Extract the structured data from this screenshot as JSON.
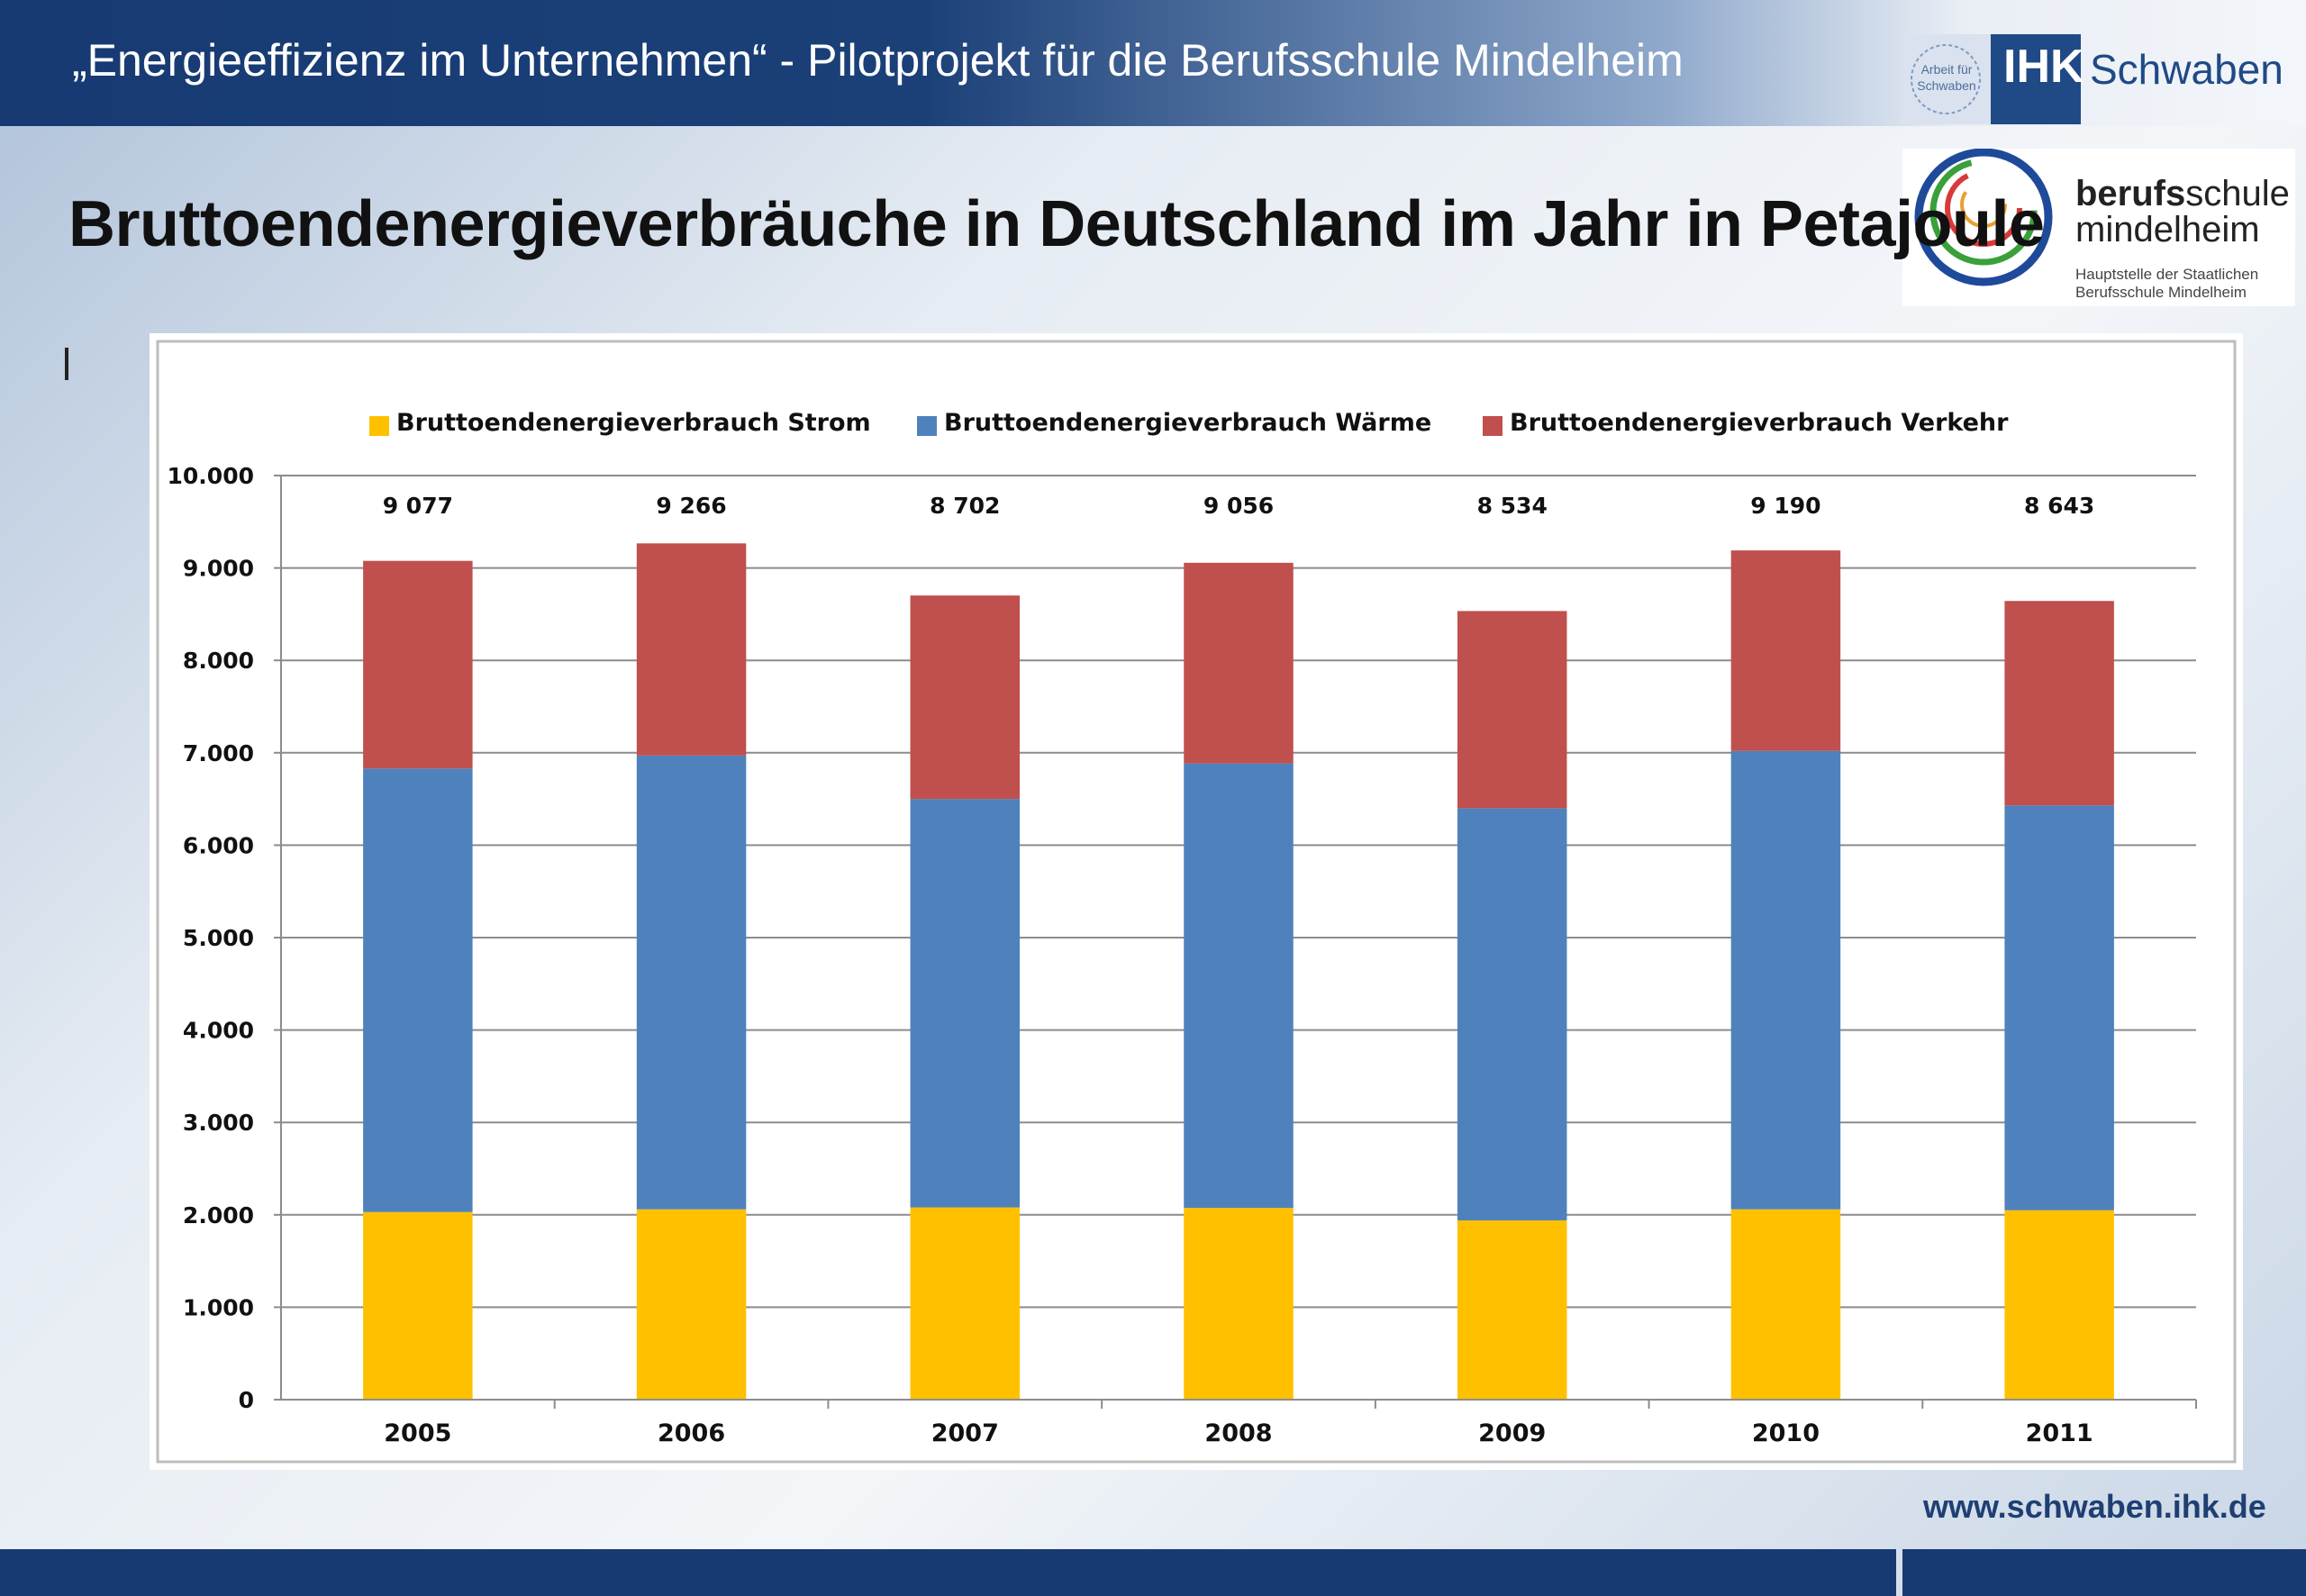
{
  "header": {
    "title": "„Energieeffizienz im Unternehmen“ - Pilotprojekt für die Berufsschule Mindelheim",
    "ihk_seal": "Arbeit für Schwaben",
    "ihk_label": "IHK",
    "ihk_region": "Schwaben"
  },
  "school_logo": {
    "name_bold": "berufs",
    "name_rest": "schule",
    "name_line2": "mindelheim",
    "subtitle": "Hauptstelle der Staatlichen Berufsschule Mindelheim"
  },
  "slide": {
    "title": "Bruttoendenergieverbräuche in Deutschland im Jahr in Petajoule"
  },
  "footer": {
    "url": "www.schwaben.ihk.de"
  },
  "colors": {
    "strom": "#ffc000",
    "waerme": "#4f81bd",
    "verkehr": "#c0504d",
    "header_bg": "#173a73"
  },
  "chart_data": {
    "type": "bar",
    "stacked": true,
    "categories": [
      "2005",
      "2006",
      "2007",
      "2008",
      "2009",
      "2010",
      "2011"
    ],
    "series": [
      {
        "name": "Bruttoendenergieverbrauch Strom",
        "values": [
          2030,
          2060,
          2080,
          2075,
          1940,
          2060,
          2050
        ]
      },
      {
        "name": "Bruttoendenergieverbrauch Wärme",
        "values": [
          4800,
          4910,
          4420,
          4810,
          4460,
          4960,
          4380
        ]
      },
      {
        "name": "Bruttoendenergieverbrauch Verkehr",
        "values": [
          2247,
          2296,
          2202,
          2171,
          2134,
          2170,
          2213
        ]
      }
    ],
    "totals": [
      9077,
      9266,
      8702,
      9056,
      8534,
      9190,
      8643
    ],
    "total_labels": [
      "9 077",
      "9 266",
      "8 702",
      "9 056",
      "8 534",
      "9 190",
      "8 643"
    ],
    "ylim": [
      0,
      10000
    ],
    "yticks": [
      0,
      1000,
      2000,
      3000,
      4000,
      5000,
      6000,
      7000,
      8000,
      9000,
      10000
    ],
    "ytick_labels": [
      "0",
      "1.000",
      "2.000",
      "3.000",
      "4.000",
      "5.000",
      "6.000",
      "7.000",
      "8.000",
      "9.000",
      "10.000"
    ],
    "grid": true,
    "legend": "top",
    "title": "",
    "xlabel": "",
    "ylabel": ""
  }
}
